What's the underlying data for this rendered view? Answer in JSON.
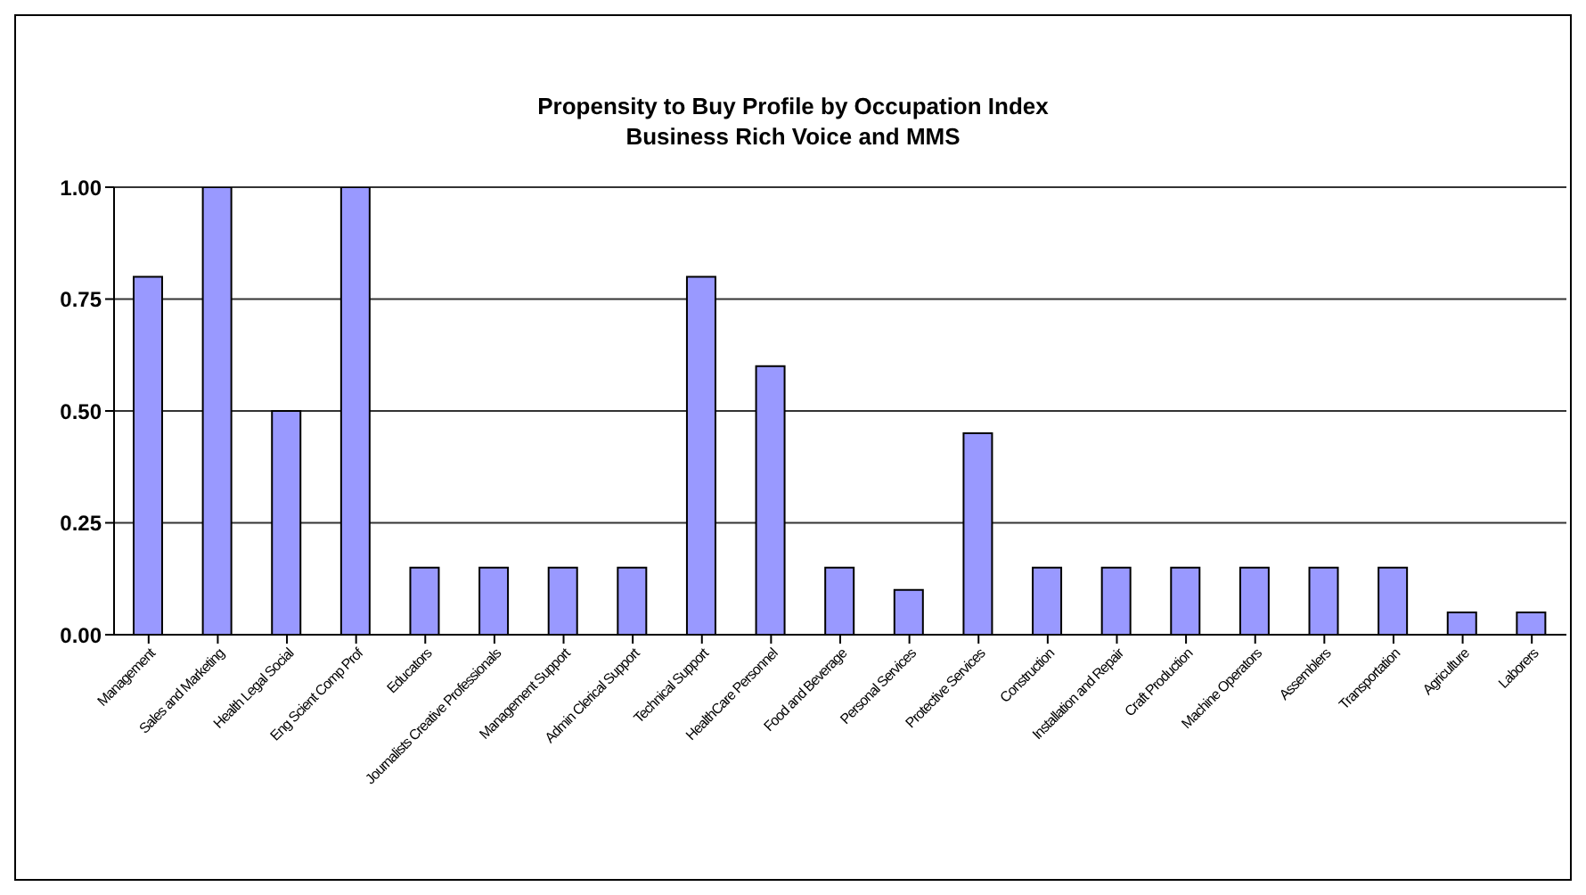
{
  "chart_data": {
    "type": "bar",
    "title": "Propensity to Buy Profile by Occupation Index",
    "subtitle": "Business Rich Voice and MMS",
    "categories": [
      "Management",
      "Sales and Marketing",
      "Health Legal Social",
      "Eng Scient Comp Prof",
      "Educators",
      "Journalists Creative Professionals",
      "Management Support",
      "Admin Clerical Support",
      "Technical Support",
      "HealthCare Personnel",
      "Food and Beverage",
      "Personal Services",
      "Protective Services",
      "Construction",
      "Installation and Repair",
      "Craft Production",
      "Machine Operators",
      "Assemblers",
      "Transportation",
      "Agriculture",
      "Laborers"
    ],
    "values": [
      0.8,
      1,
      0.5,
      1,
      0.15,
      0.15,
      0.15,
      0.15,
      0.8,
      0.6,
      0.15,
      0.1,
      0.45,
      0.15,
      0.15,
      0.15,
      0.15,
      0.15,
      0.15,
      0.05,
      0.05
    ],
    "color": "#9999ff",
    "ylim": [
      0,
      1
    ],
    "yticks": [
      {
        "value": 0,
        "label": "0.00"
      },
      {
        "value": 0.25,
        "label": "0.25"
      },
      {
        "value": 0.5,
        "label": "0.50"
      },
      {
        "value": 0.75,
        "label": "0.75"
      },
      {
        "value": 1,
        "label": "1.00"
      }
    ],
    "grid": "y"
  }
}
